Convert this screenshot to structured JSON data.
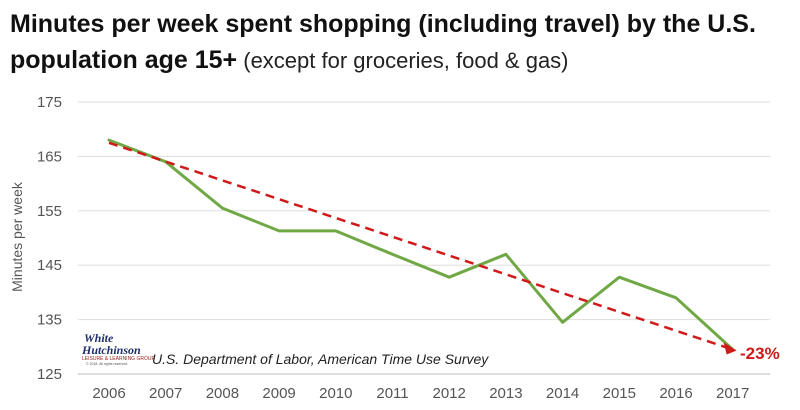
{
  "title": {
    "line1": "Minutes per week spent shopping (including travel) by the U.S.",
    "line2_bold": "population age 15+",
    "line2_rest": " (except for groceries, food & gas)"
  },
  "source": "U.S. Department of Labor, American Time Use Survey",
  "logo": {
    "line1": "White",
    "line2": "Hutchinson",
    "line3": "LEISURE & LEARNING GROUP",
    "line4": "© 2018. All rights reserved."
  },
  "chart_data": {
    "type": "line",
    "ylabel": "Minutes per week",
    "ylim": [
      125,
      175
    ],
    "yticks": [
      125,
      135,
      145,
      155,
      165,
      175
    ],
    "x": [
      "2006",
      "2007",
      "2008",
      "2009",
      "2010",
      "2011",
      "2012",
      "2013",
      "2014",
      "2015",
      "2016",
      "2017"
    ],
    "series": [
      {
        "values": [
          168,
          164,
          155.5,
          151.3,
          151.3,
          147,
          142.8,
          147,
          134.5,
          142.8,
          139,
          129.5
        ],
        "color": "#70a845"
      }
    ],
    "trend": {
      "values": [
        167.5,
        129.5
      ],
      "color": "#d01a1a",
      "style": "dashed"
    },
    "annotation": {
      "text": "-23%",
      "color": "#d01a1a"
    },
    "grid": true
  }
}
